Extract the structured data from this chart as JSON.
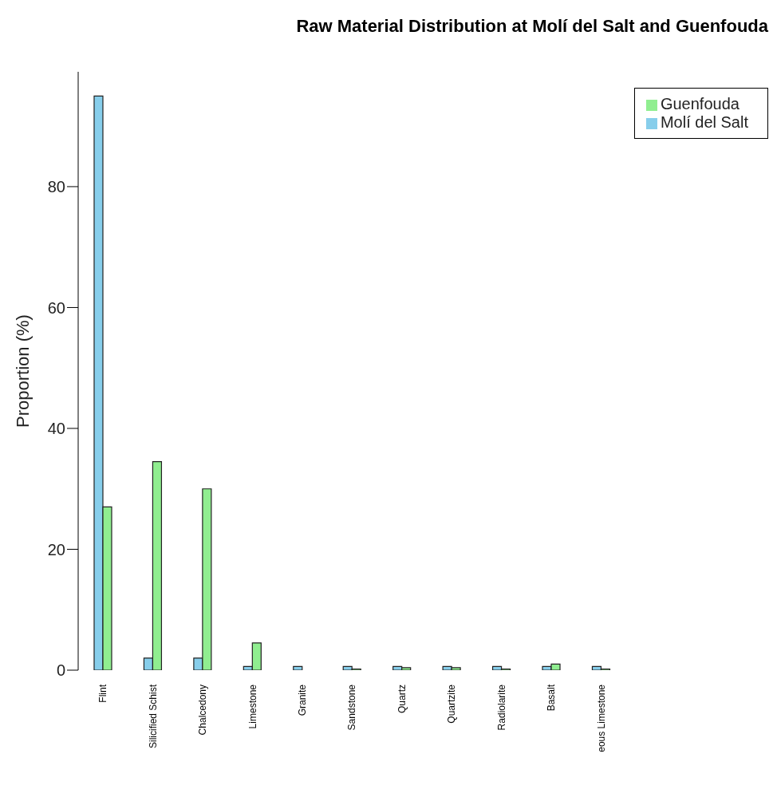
{
  "chart_data": {
    "type": "bar",
    "title": "Raw Material Distribution at Molí del Salt and Guenfouda",
    "ylabel": "Proportion (%)",
    "categories": [
      "Flint",
      "Silicified Schist",
      "Chalcedony",
      "Limestone",
      "Granite",
      "Sandstone",
      "Quartz",
      "Quartzite",
      "Radiolarite",
      "Basalt",
      "eous Limestone"
    ],
    "series": [
      {
        "name": "Molí del Salt",
        "color": "#87ceeb",
        "values": [
          95,
          2,
          2,
          0.6,
          0.6,
          0.6,
          0.6,
          0.6,
          0.6,
          0.6,
          0.6
        ]
      },
      {
        "name": "Guenfouda",
        "color": "#90ee90",
        "values": [
          27,
          34.5,
          30,
          4.5,
          0,
          0.2,
          0.4,
          0.4,
          0.2,
          1,
          0.2
        ]
      }
    ],
    "ylim": [
      0,
      99
    ],
    "yticks": [
      0,
      20,
      40,
      60,
      80
    ],
    "grid": false,
    "legend": "top right"
  }
}
